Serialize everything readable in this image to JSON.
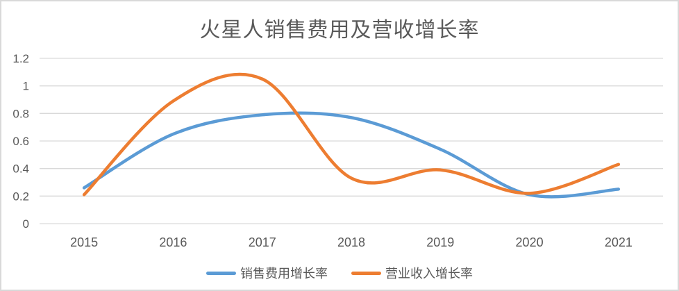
{
  "frame": {
    "background": "#FFFFFF",
    "border_color": "#D9D9D9"
  },
  "chart_data": {
    "type": "line",
    "title": "火星人销售费用及营收增长率",
    "categories": [
      "2015",
      "2016",
      "2017",
      "2018",
      "2019",
      "2020",
      "2021"
    ],
    "series": [
      {
        "name": "销售费用增长率",
        "color": "#5B9BD5",
        "values": [
          0.26,
          0.65,
          0.79,
          0.77,
          0.54,
          0.21,
          0.25
        ]
      },
      {
        "name": "营业收入增长率",
        "color": "#ED7D31",
        "values": [
          0.21,
          0.89,
          1.05,
          0.33,
          0.39,
          0.22,
          0.43
        ]
      }
    ],
    "y_axis": {
      "min": 0,
      "max": 1.2,
      "step": 0.2,
      "tick_labels": [
        "0",
        "0.2",
        "0.4",
        "0.6",
        "0.8",
        "1",
        "1.2"
      ]
    },
    "x_axis_label": "",
    "y_axis_label": "",
    "grid": true,
    "smooth_lines": true,
    "legend_position": "bottom",
    "text_color": "#595959",
    "gridline_color": "#D9D9D9"
  }
}
